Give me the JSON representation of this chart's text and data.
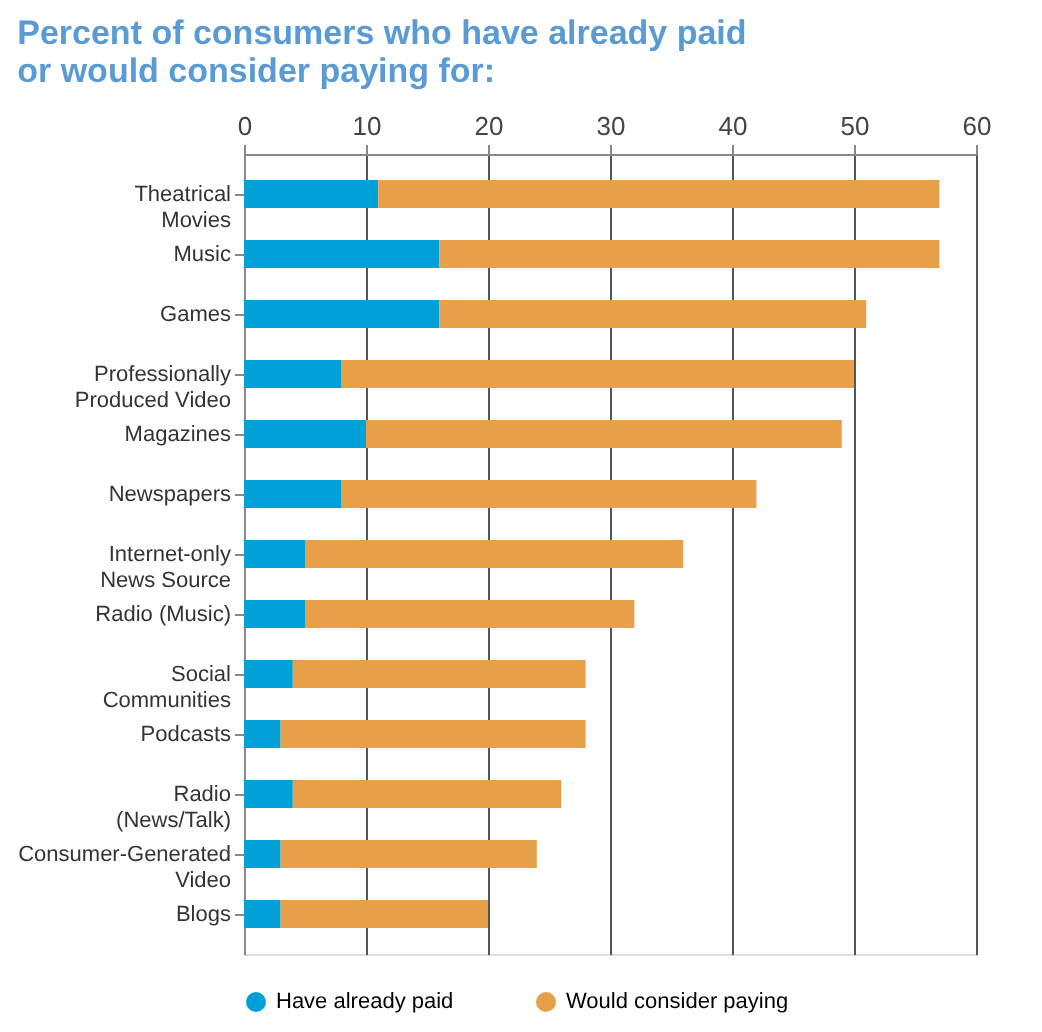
{
  "chart_data": {
    "type": "bar",
    "orientation": "horizontal",
    "stacked": true,
    "title": "Percent of consumers who have already paid or would consider paying for:",
    "categories": [
      "Theatrical Movies",
      "Music",
      "Games",
      "Professionally Produced Video",
      "Magazines",
      "Newspapers",
      "Internet-only News Source",
      "Radio (Music)",
      "Social Communities",
      "Podcasts",
      "Radio (News/Talk)",
      "Consumer-Generated Video",
      "Blogs"
    ],
    "series": [
      {
        "name": "Have already paid",
        "color": "#00a0d8",
        "values": [
          11,
          16,
          16,
          8,
          10,
          8,
          5,
          5,
          4,
          3,
          4,
          3,
          3
        ]
      },
      {
        "name": "Would consider paying",
        "color": "#e8a048",
        "values": [
          46,
          41,
          35,
          42,
          39,
          34,
          31,
          27,
          24,
          25,
          22,
          21,
          17
        ]
      }
    ],
    "xlim": [
      0,
      60
    ],
    "xticks": [
      0,
      10,
      20,
      30,
      40,
      50,
      60
    ],
    "grid": "x",
    "legend": "bottom"
  }
}
